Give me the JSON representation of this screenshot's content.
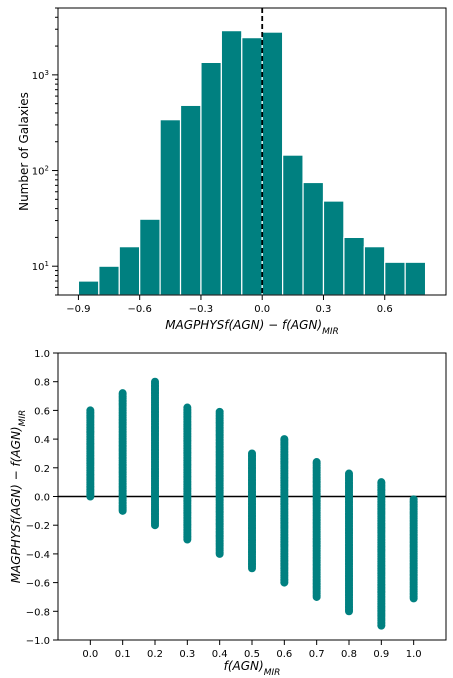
{
  "colors": {
    "bar": "#008080",
    "bar_edge": "#ffffff",
    "point": "#008080",
    "zero_line": "#000000",
    "vline": "#000000"
  },
  "chart_data": [
    {
      "type": "bar",
      "xlabel_main": "MAGPHYSf(AGN) − f(AGN)",
      "xlabel_sub": "MIR",
      "ylabel": "Number of Galaxies",
      "yscale": "log",
      "xlim": [
        -1.0,
        0.9
      ],
      "ylim": [
        5,
        5000
      ],
      "bin_width": 0.1,
      "bin_starts": [
        -0.9,
        -0.8,
        -0.7,
        -0.6,
        -0.5,
        -0.4,
        -0.3,
        -0.2,
        -0.1,
        0.0,
        0.1,
        0.2,
        0.3,
        0.4,
        0.5,
        0.6,
        0.7
      ],
      "values": [
        7,
        10,
        16,
        31,
        340,
        480,
        1350,
        2900,
        2450,
        2800,
        145,
        75,
        48,
        20,
        16,
        11,
        11
      ],
      "vline_x": 0.0,
      "xticks": [
        {
          "v": -0.9,
          "label": "−0.9"
        },
        {
          "v": -0.6,
          "label": "−0.6"
        },
        {
          "v": -0.3,
          "label": "−0.3"
        },
        {
          "v": 0.0,
          "label": "0.0"
        },
        {
          "v": 0.3,
          "label": "0.3"
        },
        {
          "v": 0.6,
          "label": "0.6"
        }
      ],
      "yticks": [
        {
          "v": 10,
          "base": "10",
          "exp": "1"
        },
        {
          "v": 100,
          "base": "10",
          "exp": "2"
        },
        {
          "v": 1000,
          "base": "10",
          "exp": "3"
        }
      ]
    },
    {
      "type": "scatter",
      "xlabel_main": "f(AGN)",
      "xlabel_sub": "MIR",
      "ylabel_main": "MAGPHYSf(AGN) − f(AGN)",
      "ylabel_sub": "MIR",
      "xlim": [
        -0.1,
        1.1
      ],
      "ylim": [
        -1.0,
        1.0
      ],
      "zero_line_y": 0.0,
      "columns": [
        {
          "x": 0.0,
          "min": 0.0,
          "max": 0.6
        },
        {
          "x": 0.1,
          "min": -0.1,
          "max": 0.72
        },
        {
          "x": 0.2,
          "min": -0.2,
          "max": 0.8
        },
        {
          "x": 0.3,
          "min": -0.3,
          "max": 0.62
        },
        {
          "x": 0.4,
          "min": -0.4,
          "max": 0.59
        },
        {
          "x": 0.5,
          "min": -0.5,
          "max": 0.3
        },
        {
          "x": 0.6,
          "min": -0.6,
          "max": 0.4
        },
        {
          "x": 0.7,
          "min": -0.7,
          "max": 0.24
        },
        {
          "x": 0.8,
          "min": -0.8,
          "max": 0.16
        },
        {
          "x": 0.9,
          "min": -0.9,
          "max": 0.1
        },
        {
          "x": 1.0,
          "min": -0.71,
          "max": -0.02
        }
      ],
      "xticks": [
        {
          "v": 0.0,
          "label": "0.0"
        },
        {
          "v": 0.1,
          "label": "0.1"
        },
        {
          "v": 0.2,
          "label": "0.2"
        },
        {
          "v": 0.3,
          "label": "0.3"
        },
        {
          "v": 0.4,
          "label": "0.4"
        },
        {
          "v": 0.5,
          "label": "0.5"
        },
        {
          "v": 0.6,
          "label": "0.6"
        },
        {
          "v": 0.7,
          "label": "0.7"
        },
        {
          "v": 0.8,
          "label": "0.8"
        },
        {
          "v": 0.9,
          "label": "0.9"
        },
        {
          "v": 1.0,
          "label": "1.0"
        }
      ],
      "yticks": [
        {
          "v": 1.0,
          "label": "1.0"
        },
        {
          "v": 0.8,
          "label": "0.8"
        },
        {
          "v": 0.6,
          "label": "0.6"
        },
        {
          "v": 0.4,
          "label": "0.4"
        },
        {
          "v": 0.2,
          "label": "0.2"
        },
        {
          "v": 0.0,
          "label": "0.0"
        },
        {
          "v": -0.2,
          "label": "−0.2"
        },
        {
          "v": -0.4,
          "label": "−0.4"
        },
        {
          "v": -0.6,
          "label": "−0.6"
        },
        {
          "v": -0.8,
          "label": "−0.8"
        },
        {
          "v": -1.0,
          "label": "−1.0"
        }
      ]
    }
  ]
}
